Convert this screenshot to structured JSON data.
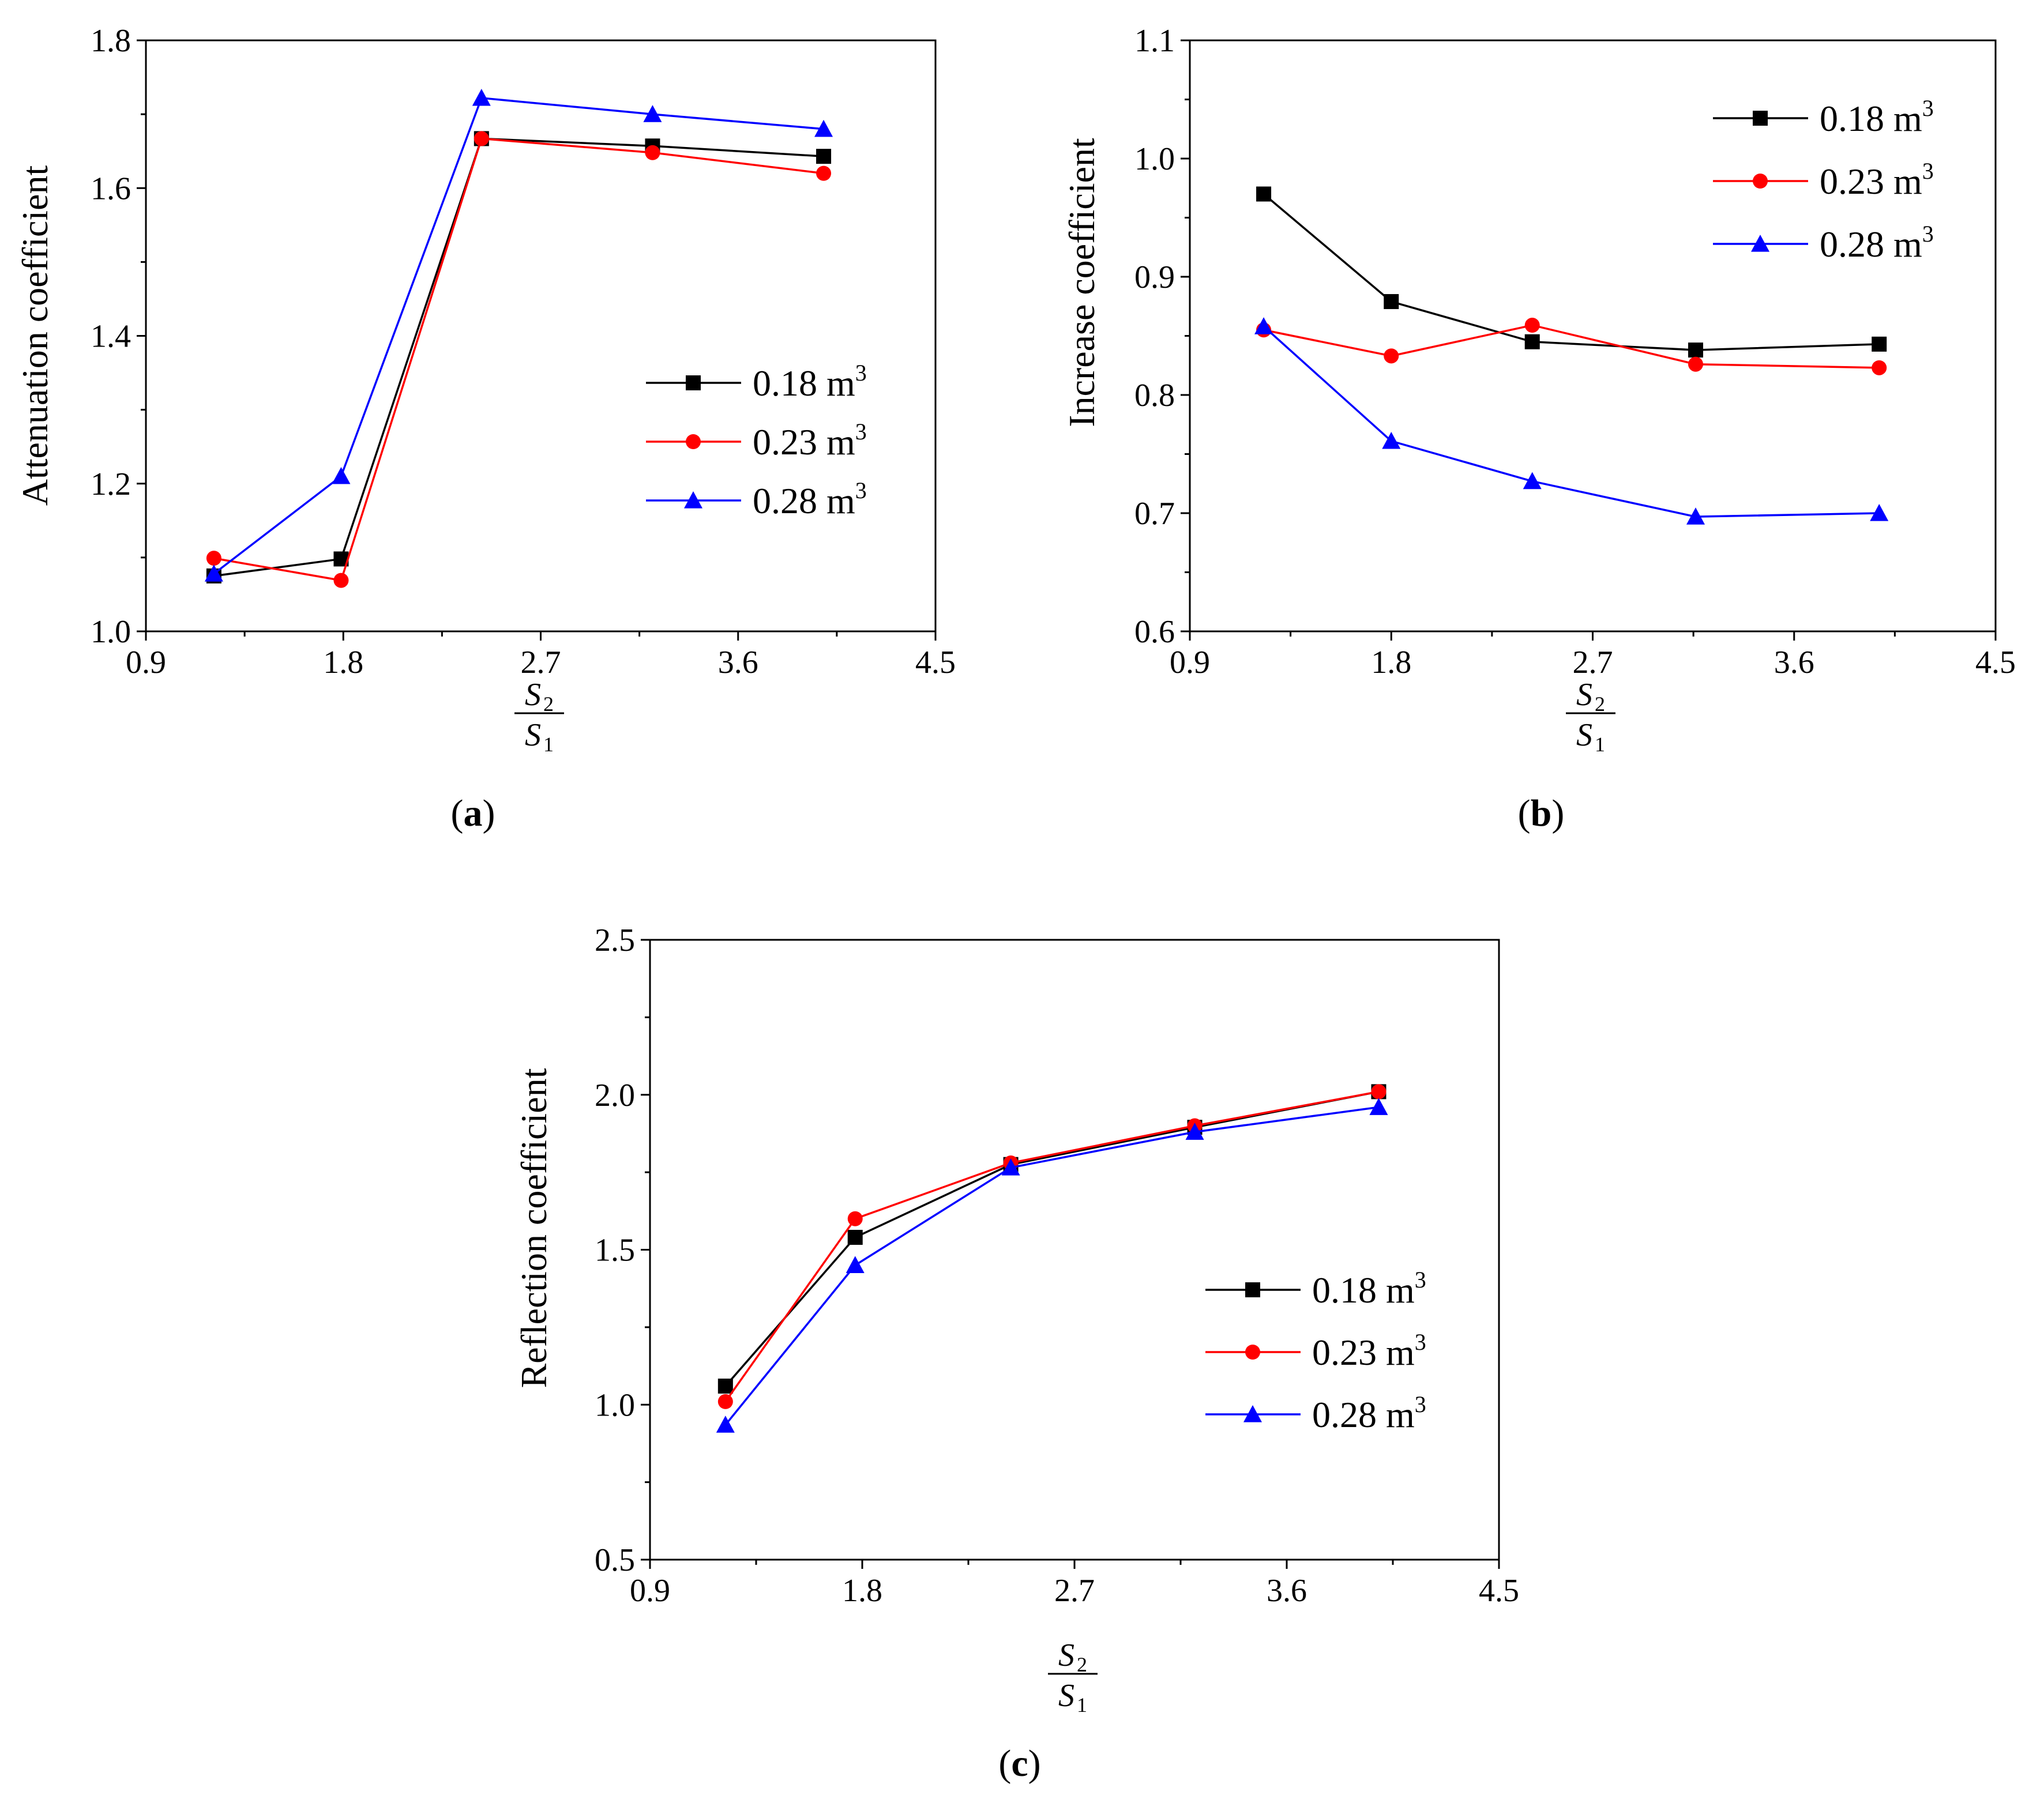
{
  "chart_data": [
    {
      "type": "line",
      "panel_label": "a",
      "xlabel": {
        "numerator": "S",
        "numerator_sub": "2",
        "denominator": "S",
        "denominator_sub": "1"
      },
      "ylabel": "Attenuation coefficient",
      "xlim": [
        0.9,
        4.5
      ],
      "ylim": [
        1.0,
        1.8
      ],
      "xticks": [
        0.9,
        1.8,
        2.7,
        3.6,
        4.5
      ],
      "xtick_labels": [
        "0.9",
        "1.8",
        "2.7",
        "3.6",
        "4.5"
      ],
      "yticks": [
        1.0,
        1.2,
        1.4,
        1.6,
        1.8
      ],
      "ytick_labels": [
        "1.0",
        "1.2",
        "1.4",
        "1.6",
        "1.8"
      ],
      "legend_position": "center-right",
      "series": [
        {
          "name": "0.18 m",
          "unit_sup": "3",
          "color": "#000000",
          "marker": "square",
          "x": [
            1.21,
            1.79,
            2.43,
            3.21,
            3.99
          ],
          "y": [
            1.075,
            1.098,
            1.667,
            1.657,
            1.643
          ]
        },
        {
          "name": "0.23 m",
          "unit_sup": "3",
          "color": "#ff0000",
          "marker": "circle",
          "x": [
            1.21,
            1.79,
            2.43,
            3.21,
            3.99
          ],
          "y": [
            1.099,
            1.069,
            1.667,
            1.648,
            1.62
          ]
        },
        {
          "name": "0.28 m",
          "unit_sup": "3",
          "color": "#0000ff",
          "marker": "triangle",
          "x": [
            1.21,
            1.79,
            2.43,
            3.21,
            3.99
          ],
          "y": [
            1.078,
            1.21,
            1.722,
            1.7,
            1.68
          ]
        }
      ]
    },
    {
      "type": "line",
      "panel_label": "b",
      "xlabel": {
        "numerator": "S",
        "numerator_sub": "2",
        "denominator": "S",
        "denominator_sub": "1"
      },
      "ylabel": "Increase coefficient",
      "xlim": [
        0.9,
        4.5
      ],
      "ylim": [
        0.6,
        1.1
      ],
      "xticks": [
        0.9,
        1.8,
        2.7,
        3.6,
        4.5
      ],
      "xtick_labels": [
        "0.9",
        "1.8",
        "2.7",
        "3.6",
        "4.5"
      ],
      "yticks": [
        0.6,
        0.7,
        0.8,
        0.9,
        1.0,
        1.1
      ],
      "ytick_labels": [
        "0.6",
        "0.7",
        "0.8",
        "0.9",
        "1.0",
        "1.1"
      ],
      "legend_position": "top-right",
      "series": [
        {
          "name": "0.18 m",
          "unit_sup": "3",
          "color": "#000000",
          "marker": "square",
          "x": [
            1.23,
            1.8,
            2.43,
            3.16,
            3.98
          ],
          "y": [
            0.97,
            0.879,
            0.845,
            0.838,
            0.843
          ]
        },
        {
          "name": "0.23 m",
          "unit_sup": "3",
          "color": "#ff0000",
          "marker": "circle",
          "x": [
            1.23,
            1.8,
            2.43,
            3.16,
            3.98
          ],
          "y": [
            0.855,
            0.833,
            0.859,
            0.826,
            0.823
          ]
        },
        {
          "name": "0.28 m",
          "unit_sup": "3",
          "color": "#0000ff",
          "marker": "triangle",
          "x": [
            1.23,
            1.8,
            2.43,
            3.16,
            3.98
          ],
          "y": [
            0.858,
            0.761,
            0.727,
            0.697,
            0.7
          ]
        }
      ]
    },
    {
      "type": "line",
      "panel_label": "c",
      "xlabel": {
        "numerator": "S",
        "numerator_sub": "2",
        "denominator": "S",
        "denominator_sub": "1"
      },
      "ylabel": "Reflection coefficient",
      "xlim": [
        0.9,
        4.5
      ],
      "ylim": [
        0.5,
        2.5
      ],
      "xticks": [
        0.9,
        1.8,
        2.7,
        3.6,
        4.5
      ],
      "xtick_labels": [
        "0.9",
        "1.8",
        "2.7",
        "3.6",
        "4.5"
      ],
      "yticks": [
        0.5,
        1.0,
        1.5,
        2.0,
        2.5
      ],
      "ytick_labels": [
        "0.5",
        "1.0",
        "1.5",
        "2.0",
        "2.5"
      ],
      "legend_position": "bottom-right",
      "series": [
        {
          "name": "0.18 m",
          "unit_sup": "3",
          "color": "#000000",
          "marker": "square",
          "x": [
            1.22,
            1.77,
            2.43,
            3.21,
            3.99
          ],
          "y": [
            1.06,
            1.54,
            1.775,
            1.895,
            2.01
          ]
        },
        {
          "name": "0.23 m",
          "unit_sup": "3",
          "color": "#ff0000",
          "marker": "circle",
          "x": [
            1.22,
            1.77,
            2.43,
            3.21,
            3.99
          ],
          "y": [
            1.01,
            1.6,
            1.78,
            1.9,
            2.01
          ]
        },
        {
          "name": "0.28 m",
          "unit_sup": "3",
          "color": "#0000ff",
          "marker": "triangle",
          "x": [
            1.22,
            1.77,
            2.43,
            3.21,
            3.99
          ],
          "y": [
            0.935,
            1.45,
            1.765,
            1.88,
            1.96
          ]
        }
      ]
    }
  ]
}
